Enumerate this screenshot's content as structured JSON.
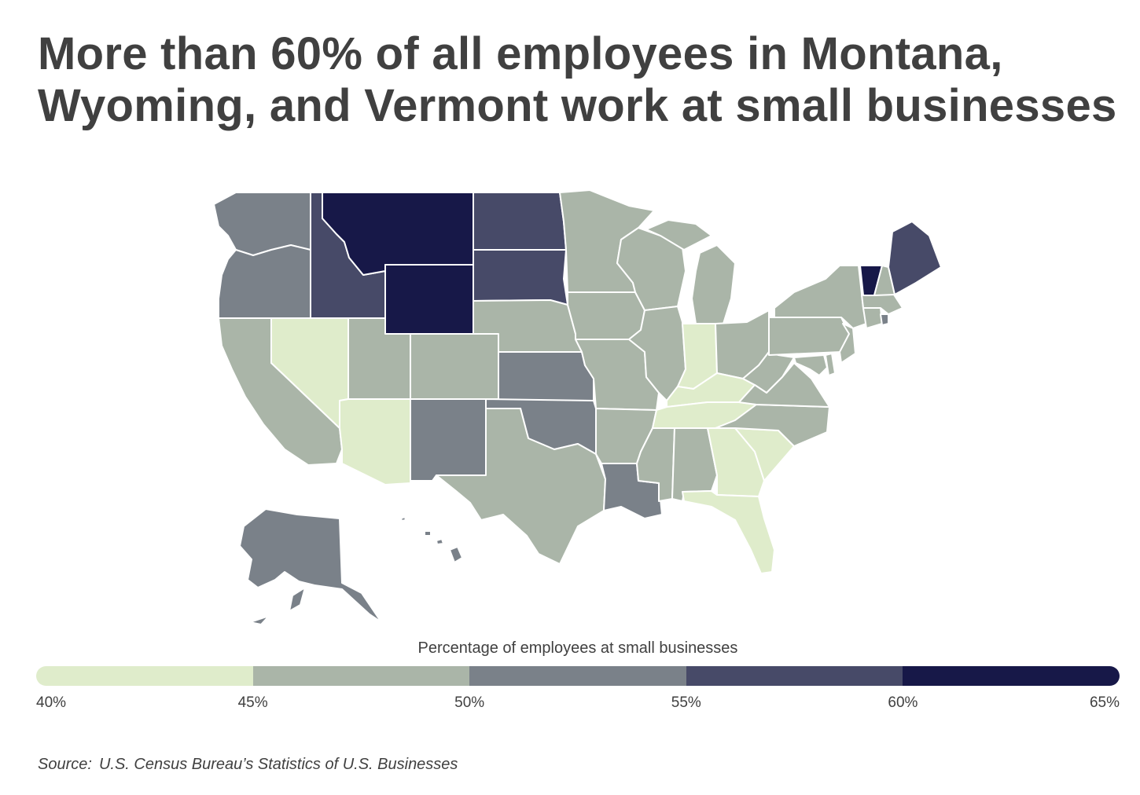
{
  "title": "More than 60% of all employees in Montana, Wyoming, and Vermont work at small businesses",
  "legend": {
    "title": "Percentage of employees at small businesses",
    "ticks": [
      "40%",
      "45%",
      "50%",
      "55%",
      "60%",
      "65%"
    ],
    "bins": [
      {
        "range": [
          40,
          45
        ],
        "color": "#dfeccb"
      },
      {
        "range": [
          45,
          50
        ],
        "color": "#aab5a8"
      },
      {
        "range": [
          50,
          55
        ],
        "color": "#7a8189"
      },
      {
        "range": [
          55,
          60
        ],
        "color": "#474a68"
      },
      {
        "range": [
          60,
          65
        ],
        "color": "#171848"
      }
    ]
  },
  "map": {
    "type": "choropleth",
    "region": "United States",
    "state_bins": {
      "Montana": "60-65",
      "Wyoming": "60-65",
      "Vermont": "60-65",
      "Idaho": "55-60",
      "North Dakota": "55-60",
      "South Dakota": "55-60",
      "Maine": "55-60",
      "Washington": "50-55",
      "Oregon": "50-55",
      "New Mexico": "50-55",
      "Kansas": "50-55",
      "Oklahoma": "50-55",
      "Louisiana": "50-55",
      "Alaska": "50-55",
      "Hawaii": "50-55",
      "Rhode Island": "50-55",
      "California": "45-50",
      "Utah": "45-50",
      "Colorado": "45-50",
      "Nebraska": "45-50",
      "Texas": "45-50",
      "Minnesota": "45-50",
      "Iowa": "45-50",
      "Missouri": "45-50",
      "Arkansas": "45-50",
      "Wisconsin": "45-50",
      "Illinois": "45-50",
      "Michigan": "45-50",
      "Ohio": "45-50",
      "Mississippi": "45-50",
      "Alabama": "45-50",
      "West Virginia": "45-50",
      "Virginia": "45-50",
      "North Carolina": "45-50",
      "Pennsylvania": "45-50",
      "New York": "45-50",
      "New Jersey": "45-50",
      "Delaware": "45-50",
      "Maryland": "45-50",
      "Connecticut": "45-50",
      "Massachusetts": "45-50",
      "New Hampshire": "45-50",
      "Nevada": "40-45",
      "Arizona": "40-45",
      "Indiana": "40-45",
      "Kentucky": "40-45",
      "Tennessee": "40-45",
      "Georgia": "40-45",
      "South Carolina": "40-45",
      "Florida": "40-45"
    }
  },
  "source": {
    "label": "Source:",
    "text": "U.S. Census Bureau’s Statistics of U.S. Businesses"
  }
}
